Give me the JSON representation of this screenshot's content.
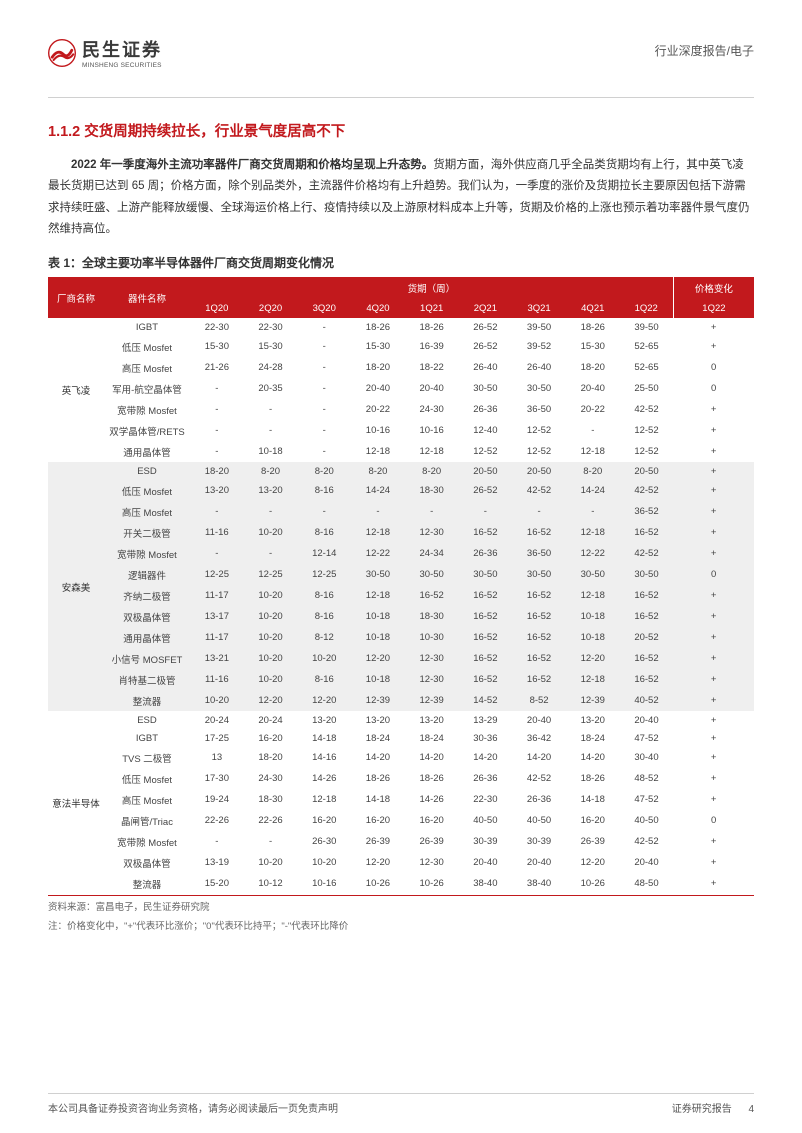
{
  "colors": {
    "brand_red": "#c2191d",
    "text_body": "#333333",
    "text_muted": "#666666",
    "stripe": "#efefef",
    "rule": "#d0d0d0",
    "white": "#ffffff"
  },
  "typography": {
    "body_pt": 11.5,
    "title_pt": 14.5,
    "table_pt": 9.5,
    "caption_pt": 12,
    "logo_cn_pt": 18
  },
  "header": {
    "logo_cn": "民生证券",
    "logo_en": "MINSHENG SECURITIES",
    "right": "行业深度报告/电子"
  },
  "section": {
    "title": "1.1.2 交货周期持续拉长，行业景气度居高不下",
    "paragraph_bold": "2022 年一季度海外主流功率器件厂商交货周期和价格均呈现上升态势。",
    "paragraph_rest": "货期方面，海外供应商几乎全品类货期均有上行，其中英飞凌最长货期已达到 65 周；价格方面，除个别品类外，主流器件价格均有上升趋势。我们认为，一季度的涨价及货期拉长主要原因包括下游需求持续旺盛、上游产能释放缓慢、全球海运价格上行、疫情持续以及上游原材料成本上升等，货期及价格的上涨也预示着功率器件景气度仍然维持高位。"
  },
  "table": {
    "caption": "表 1：全球主要功率半导体器件厂商交货周期变化情况",
    "head_vendor": "厂商名称",
    "head_device": "器件名称",
    "head_period_group": "货期（周）",
    "head_price": "价格变化",
    "quarters": [
      "1Q20",
      "2Q20",
      "3Q20",
      "4Q20",
      "1Q21",
      "2Q21",
      "3Q21",
      "4Q21",
      "1Q22"
    ],
    "price_col": "1Q22",
    "blocks": [
      {
        "vendor": "英飞凌",
        "stripe": false,
        "rows": [
          {
            "device": "IGBT",
            "v": [
              "22-30",
              "22-30",
              "-",
              "18-26",
              "18-26",
              "26-52",
              "39-50",
              "18-26",
              "39-50"
            ],
            "p": "+"
          },
          {
            "device": "低压 Mosfet",
            "v": [
              "15-30",
              "15-30",
              "-",
              "15-30",
              "16-39",
              "26-52",
              "39-52",
              "15-30",
              "52-65"
            ],
            "p": "+"
          },
          {
            "device": "高压 Mosfet",
            "v": [
              "21-26",
              "24-28",
              "-",
              "18-20",
              "18-22",
              "26-40",
              "26-40",
              "18-20",
              "52-65"
            ],
            "p": "0"
          },
          {
            "device": "军用-航空晶体管",
            "v": [
              "-",
              "20-35",
              "-",
              "20-40",
              "20-40",
              "30-50",
              "30-50",
              "20-40",
              "25-50"
            ],
            "p": "0"
          },
          {
            "device": "宽带隙 Mosfet",
            "v": [
              "-",
              "-",
              "-",
              "20-22",
              "24-30",
              "26-36",
              "36-50",
              "20-22",
              "42-52"
            ],
            "p": "+"
          },
          {
            "device": "双学晶体管/RETS",
            "v": [
              "-",
              "-",
              "-",
              "10-16",
              "10-16",
              "12-40",
              "12-52",
              "-",
              "12-52"
            ],
            "p": "+"
          },
          {
            "device": "通用晶体管",
            "v": [
              "-",
              "10-18",
              "-",
              "12-18",
              "12-18",
              "12-52",
              "12-52",
              "12-18",
              "12-52"
            ],
            "p": "+"
          }
        ]
      },
      {
        "vendor": "安森美",
        "stripe": true,
        "rows": [
          {
            "device": "ESD",
            "v": [
              "18-20",
              "8-20",
              "8-20",
              "8-20",
              "8-20",
              "20-50",
              "20-50",
              "8-20",
              "20-50"
            ],
            "p": "+"
          },
          {
            "device": "低压 Mosfet",
            "v": [
              "13-20",
              "13-20",
              "8-16",
              "14-24",
              "18-30",
              "26-52",
              "42-52",
              "14-24",
              "42-52"
            ],
            "p": "+"
          },
          {
            "device": "高压 Mosfet",
            "v": [
              "-",
              "-",
              "-",
              "-",
              "-",
              "-",
              "-",
              "-",
              "36-52"
            ],
            "p": "+"
          },
          {
            "device": "开关二极管",
            "v": [
              "11-16",
              "10-20",
              "8-16",
              "12-18",
              "12-30",
              "16-52",
              "16-52",
              "12-18",
              "16-52"
            ],
            "p": "+"
          },
          {
            "device": "宽带隙 Mosfet",
            "v": [
              "-",
              "-",
              "12-14",
              "12-22",
              "24-34",
              "26-36",
              "36-50",
              "12-22",
              "42-52"
            ],
            "p": "+"
          },
          {
            "device": "逻辑器件",
            "v": [
              "12-25",
              "12-25",
              "12-25",
              "30-50",
              "30-50",
              "30-50",
              "30-50",
              "30-50",
              "30-50"
            ],
            "p": "0"
          },
          {
            "device": "齐纳二极管",
            "v": [
              "11-17",
              "10-20",
              "8-16",
              "12-18",
              "16-52",
              "16-52",
              "16-52",
              "12-18",
              "16-52"
            ],
            "p": "+"
          },
          {
            "device": "双极晶体管",
            "v": [
              "13-17",
              "10-20",
              "8-16",
              "10-18",
              "18-30",
              "16-52",
              "16-52",
              "10-18",
              "16-52"
            ],
            "p": "+"
          },
          {
            "device": "通用晶体管",
            "v": [
              "11-17",
              "10-20",
              "8-12",
              "10-18",
              "10-30",
              "16-52",
              "16-52",
              "10-18",
              "20-52"
            ],
            "p": "+"
          },
          {
            "device": "小信号 MOSFET",
            "v": [
              "13-21",
              "10-20",
              "10-20",
              "12-20",
              "12-30",
              "16-52",
              "16-52",
              "12-20",
              "16-52"
            ],
            "p": "+"
          },
          {
            "device": "肖特基二极管",
            "v": [
              "11-16",
              "10-20",
              "8-16",
              "10-18",
              "12-30",
              "16-52",
              "16-52",
              "12-18",
              "16-52"
            ],
            "p": "+"
          },
          {
            "device": "整流器",
            "v": [
              "10-20",
              "12-20",
              "12-20",
              "12-39",
              "12-39",
              "14-52",
              "8-52",
              "12-39",
              "40-52"
            ],
            "p": "+"
          }
        ]
      },
      {
        "vendor": "意法半导体",
        "stripe": false,
        "rows": [
          {
            "device": "ESD",
            "v": [
              "20-24",
              "20-24",
              "13-20",
              "13-20",
              "13-20",
              "13-29",
              "20-40",
              "13-20",
              "20-40"
            ],
            "p": "+"
          },
          {
            "device": "IGBT",
            "v": [
              "17-25",
              "16-20",
              "14-18",
              "18-24",
              "18-24",
              "30-36",
              "36-42",
              "18-24",
              "47-52"
            ],
            "p": "+"
          },
          {
            "device": "TVS 二极管",
            "v": [
              "13",
              "18-20",
              "14-16",
              "14-20",
              "14-20",
              "14-20",
              "14-20",
              "14-20",
              "30-40"
            ],
            "p": "+"
          },
          {
            "device": "低压 Mosfet",
            "v": [
              "17-30",
              "24-30",
              "14-26",
              "18-26",
              "18-26",
              "26-36",
              "42-52",
              "18-26",
              "48-52"
            ],
            "p": "+"
          },
          {
            "device": "高压 Mosfet",
            "v": [
              "19-24",
              "18-30",
              "12-18",
              "14-18",
              "14-26",
              "22-30",
              "26-36",
              "14-18",
              "47-52"
            ],
            "p": "+"
          },
          {
            "device": "晶闸管/Triac",
            "v": [
              "22-26",
              "22-26",
              "16-20",
              "16-20",
              "16-20",
              "40-50",
              "40-50",
              "16-20",
              "40-50"
            ],
            "p": "0"
          },
          {
            "device": "宽带隙 Mosfet",
            "v": [
              "-",
              "-",
              "26-30",
              "26-39",
              "26-39",
              "30-39",
              "30-39",
              "26-39",
              "42-52"
            ],
            "p": "+"
          },
          {
            "device": "双极晶体管",
            "v": [
              "13-19",
              "10-20",
              "10-20",
              "12-20",
              "12-30",
              "20-40",
              "20-40",
              "12-20",
              "20-40"
            ],
            "p": "+"
          },
          {
            "device": "整流器",
            "v": [
              "15-20",
              "10-12",
              "10-16",
              "10-26",
              "10-26",
              "38-40",
              "38-40",
              "10-26",
              "48-50"
            ],
            "p": "+"
          }
        ]
      }
    ],
    "source": "资料来源：富昌电子，民生证券研究院",
    "note": "注：价格变化中，\"+\"代表环比涨价；\"0\"代表环比持平；\"-\"代表环比降价"
  },
  "footer": {
    "left": "本公司具备证券投资咨询业务资格，请务必阅读最后一页免责声明",
    "right_label": "证券研究报告",
    "page_no": "4"
  }
}
